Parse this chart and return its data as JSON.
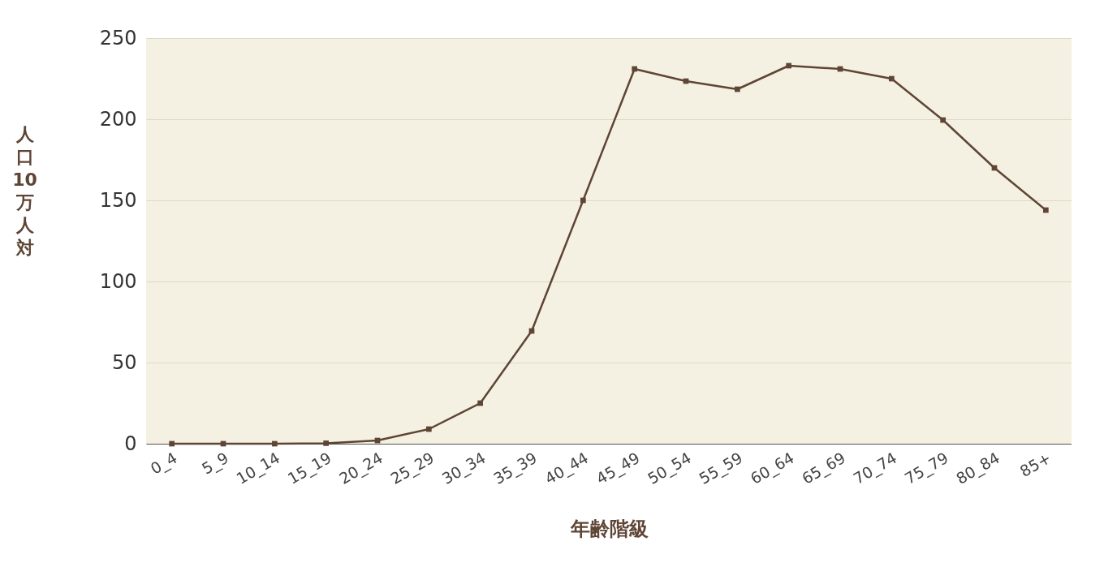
{
  "chart_data": {
    "type": "line",
    "xlabel": "年齢階級",
    "ylabel": "人口10万人対",
    "categories": [
      "0_4",
      "5_9",
      "10_14",
      "15_19",
      "20_24",
      "25_29",
      "30_34",
      "35_39",
      "40_44",
      "45_49",
      "50_54",
      "55_59",
      "60_64",
      "65_69",
      "70_74",
      "75_79",
      "80_84",
      "85+"
    ],
    "series": [
      {
        "color": "#5e4535",
        "values": [
          0,
          0,
          0,
          0.3,
          2,
          9,
          25,
          69.5,
          150,
          231,
          223.5,
          218.5,
          233,
          231,
          225,
          199.5,
          170,
          144
        ]
      }
    ],
    "ylim": [
      0,
      250
    ],
    "yticks": [
      0,
      50,
      100,
      150,
      200,
      250
    ],
    "grid": "y",
    "marker": "square",
    "line_style": "solid",
    "legend": false
  }
}
